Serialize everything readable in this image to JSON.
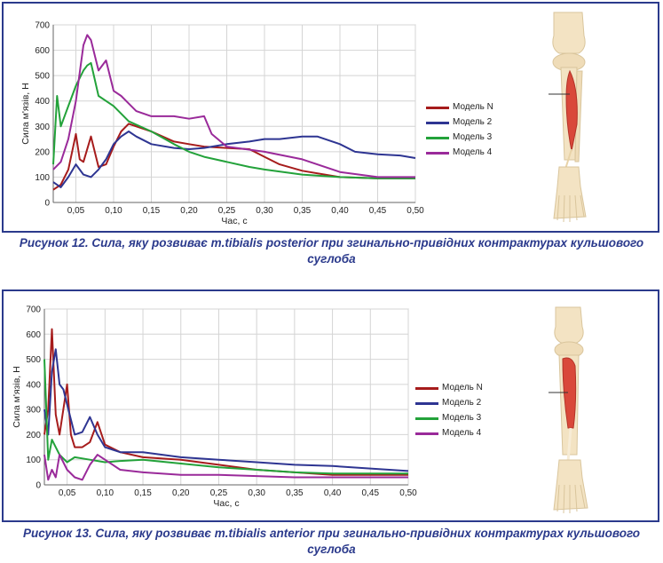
{
  "figures": [
    {
      "caption": "Рисунок 12. Сила, яку розвиває m.tibialis posterior при згинально-привідних контрактурах кульшового суглоба"
    },
    {
      "caption": "Рисунок 13. Сила, яку розвиває m.tibialis anterior при згинально-привідних контрактурах кульшового суглоба"
    }
  ],
  "chart_data": [
    {
      "type": "line",
      "title": "",
      "xlabel": "Час, с",
      "ylabel": "Сила м'язів, Н",
      "xlim": [
        0.02,
        0.5
      ],
      "ylim": [
        0,
        700
      ],
      "x_ticks": [
        0.05,
        0.1,
        0.15,
        0.2,
        0.25,
        0.3,
        0.35,
        0.4,
        0.45,
        0.5
      ],
      "x_tick_labels": [
        "0,05",
        "0,10",
        "0,15",
        "0,20",
        "0,25",
        "0,30",
        "0,35",
        "0,40",
        "0,45",
        "0,50"
      ],
      "y_ticks": [
        0,
        100,
        200,
        300,
        400,
        500,
        600,
        700
      ],
      "grid": true,
      "legend": "right",
      "series": [
        {
          "name": "Модель N",
          "color": "#a61c1c",
          "x": [
            0.02,
            0.03,
            0.04,
            0.05,
            0.055,
            0.06,
            0.07,
            0.08,
            0.09,
            0.1,
            0.11,
            0.12,
            0.13,
            0.15,
            0.18,
            0.2,
            0.22,
            0.25,
            0.28,
            0.3,
            0.32,
            0.35,
            0.38,
            0.4,
            0.45,
            0.5
          ],
          "y": [
            50,
            70,
            130,
            270,
            170,
            160,
            260,
            140,
            150,
            220,
            280,
            310,
            300,
            280,
            240,
            230,
            220,
            215,
            210,
            180,
            150,
            125,
            110,
            100,
            95,
            95
          ]
        },
        {
          "name": "Модель 2",
          "color": "#2e3592",
          "x": [
            0.02,
            0.03,
            0.04,
            0.05,
            0.06,
            0.07,
            0.08,
            0.09,
            0.1,
            0.11,
            0.12,
            0.13,
            0.15,
            0.18,
            0.2,
            0.22,
            0.25,
            0.28,
            0.3,
            0.32,
            0.35,
            0.37,
            0.4,
            0.42,
            0.45,
            0.48,
            0.5
          ],
          "y": [
            80,
            60,
            100,
            150,
            110,
            100,
            130,
            170,
            230,
            260,
            280,
            260,
            230,
            215,
            210,
            215,
            230,
            240,
            250,
            250,
            260,
            260,
            230,
            200,
            190,
            185,
            175
          ]
        },
        {
          "name": "Модель 3",
          "color": "#23a23a",
          "x": [
            0.02,
            0.025,
            0.03,
            0.04,
            0.05,
            0.06,
            0.065,
            0.07,
            0.08,
            0.1,
            0.12,
            0.15,
            0.18,
            0.2,
            0.22,
            0.25,
            0.28,
            0.3,
            0.35,
            0.4,
            0.45,
            0.5
          ],
          "y": [
            150,
            420,
            300,
            380,
            460,
            520,
            540,
            550,
            420,
            380,
            320,
            280,
            230,
            200,
            180,
            160,
            140,
            130,
            110,
            100,
            95,
            95
          ]
        },
        {
          "name": "Модель 4",
          "color": "#9a2a9a",
          "x": [
            0.02,
            0.03,
            0.04,
            0.05,
            0.06,
            0.065,
            0.07,
            0.08,
            0.09,
            0.1,
            0.11,
            0.12,
            0.13,
            0.15,
            0.18,
            0.2,
            0.22,
            0.23,
            0.25,
            0.3,
            0.35,
            0.4,
            0.45,
            0.5
          ],
          "y": [
            130,
            160,
            250,
            400,
            620,
            660,
            640,
            520,
            560,
            440,
            420,
            390,
            360,
            340,
            340,
            330,
            340,
            270,
            220,
            200,
            170,
            120,
            100,
            100
          ]
        }
      ]
    },
    {
      "type": "line",
      "title": "",
      "xlabel": "Час, с",
      "ylabel": "Сила м'язів, Н",
      "xlim": [
        0.02,
        0.5
      ],
      "ylim": [
        0,
        700
      ],
      "x_ticks": [
        0.05,
        0.1,
        0.15,
        0.2,
        0.25,
        0.3,
        0.35,
        0.4,
        0.45,
        0.5
      ],
      "x_tick_labels": [
        "0,05",
        "0,10",
        "0,15",
        "0,20",
        "0,25",
        "0,30",
        "0,35",
        "0,40",
        "0,45",
        "0,50"
      ],
      "y_ticks": [
        0,
        100,
        200,
        300,
        400,
        500,
        600,
        700
      ],
      "grid": true,
      "legend": "right",
      "series": [
        {
          "name": "Модель N",
          "color": "#a61c1c",
          "x": [
            0.02,
            0.025,
            0.03,
            0.035,
            0.04,
            0.05,
            0.055,
            0.06,
            0.07,
            0.08,
            0.09,
            0.1,
            0.12,
            0.15,
            0.2,
            0.25,
            0.3,
            0.35,
            0.4,
            0.45,
            0.5
          ],
          "y": [
            200,
            300,
            620,
            280,
            200,
            400,
            200,
            150,
            150,
            170,
            250,
            160,
            130,
            110,
            100,
            80,
            60,
            50,
            40,
            40,
            40
          ]
        },
        {
          "name": "Модель 2",
          "color": "#2e3592",
          "x": [
            0.02,
            0.025,
            0.03,
            0.035,
            0.04,
            0.045,
            0.05,
            0.06,
            0.07,
            0.08,
            0.09,
            0.1,
            0.12,
            0.15,
            0.2,
            0.25,
            0.3,
            0.35,
            0.4,
            0.45,
            0.5
          ],
          "y": [
            300,
            200,
            450,
            540,
            400,
            380,
            320,
            200,
            210,
            270,
            200,
            150,
            130,
            130,
            110,
            100,
            90,
            80,
            75,
            65,
            55
          ]
        },
        {
          "name": "Модель 3",
          "color": "#23a23a",
          "x": [
            0.02,
            0.025,
            0.03,
            0.04,
            0.05,
            0.06,
            0.08,
            0.1,
            0.12,
            0.15,
            0.2,
            0.25,
            0.3,
            0.35,
            0.4,
            0.45,
            0.5
          ],
          "y": [
            500,
            100,
            180,
            120,
            90,
            110,
            100,
            90,
            95,
            100,
            85,
            70,
            60,
            50,
            45,
            45,
            45
          ]
        },
        {
          "name": "Модель 4",
          "color": "#9a2a9a",
          "x": [
            0.02,
            0.025,
            0.03,
            0.035,
            0.04,
            0.05,
            0.06,
            0.07,
            0.08,
            0.09,
            0.1,
            0.12,
            0.15,
            0.2,
            0.25,
            0.3,
            0.35,
            0.4,
            0.45,
            0.5
          ],
          "y": [
            120,
            20,
            60,
            30,
            120,
            60,
            30,
            20,
            80,
            120,
            100,
            60,
            50,
            40,
            40,
            35,
            30,
            30,
            30,
            30
          ]
        }
      ]
    }
  ]
}
